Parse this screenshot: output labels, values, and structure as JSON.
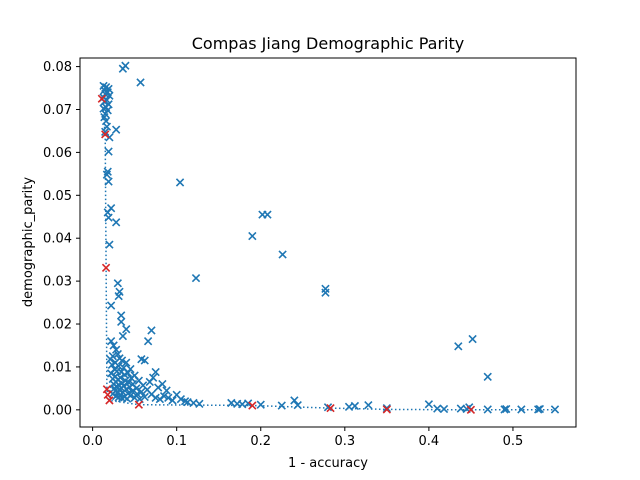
{
  "chart_data": {
    "type": "scatter",
    "title": "Compas Jiang Demographic Parity",
    "xlabel": "1 - accuracy",
    "ylabel": "demographic_parity",
    "xlim": [
      -0.015,
      0.575
    ],
    "ylim": [
      -0.004,
      0.082
    ],
    "xticks": [
      0.0,
      0.1,
      0.2,
      0.3,
      0.4,
      0.5
    ],
    "xtick_labels": [
      "0.0",
      "0.1",
      "0.2",
      "0.3",
      "0.4",
      "0.5"
    ],
    "yticks": [
      0.0,
      0.01,
      0.02,
      0.03,
      0.04,
      0.05,
      0.06,
      0.07,
      0.08
    ],
    "ytick_labels": [
      "0.00",
      "0.01",
      "0.02",
      "0.03",
      "0.04",
      "0.05",
      "0.06",
      "0.07",
      "0.08"
    ],
    "grid": false,
    "colors": {
      "all_points": "#1f77b4",
      "pareto_points": "#d62728",
      "frontier_line": "#1f77b4"
    },
    "series": [
      {
        "marker": "x",
        "color": "#1f77b4",
        "points": [
          [
            0.036,
            0.0795
          ],
          [
            0.039,
            0.0802
          ],
          [
            0.057,
            0.0763
          ],
          [
            0.013,
            0.0755
          ],
          [
            0.016,
            0.0752
          ],
          [
            0.019,
            0.0748
          ],
          [
            0.014,
            0.0745
          ],
          [
            0.018,
            0.074
          ],
          [
            0.015,
            0.0736
          ],
          [
            0.02,
            0.0732
          ],
          [
            0.013,
            0.0728
          ],
          [
            0.017,
            0.0722
          ],
          [
            0.014,
            0.0718
          ],
          [
            0.019,
            0.0712
          ],
          [
            0.016,
            0.0705
          ],
          [
            0.013,
            0.0702
          ],
          [
            0.018,
            0.0698
          ],
          [
            0.015,
            0.069
          ],
          [
            0.014,
            0.0682
          ],
          [
            0.016,
            0.0673
          ],
          [
            0.017,
            0.066
          ],
          [
            0.028,
            0.0653
          ],
          [
            0.015,
            0.0648
          ],
          [
            0.02,
            0.0635
          ],
          [
            0.019,
            0.0602
          ],
          [
            0.018,
            0.0555
          ],
          [
            0.017,
            0.0548
          ],
          [
            0.019,
            0.0532
          ],
          [
            0.022,
            0.047
          ],
          [
            0.018,
            0.046
          ],
          [
            0.019,
            0.0448
          ],
          [
            0.028,
            0.0437
          ],
          [
            0.02,
            0.0385
          ],
          [
            0.03,
            0.0295
          ],
          [
            0.032,
            0.0275
          ],
          [
            0.031,
            0.0265
          ],
          [
            0.022,
            0.0243
          ],
          [
            0.034,
            0.022
          ],
          [
            0.034,
            0.0205
          ],
          [
            0.04,
            0.0188
          ],
          [
            0.07,
            0.0185
          ],
          [
            0.036,
            0.0172
          ],
          [
            0.066,
            0.016
          ],
          [
            0.104,
            0.053
          ],
          [
            0.202,
            0.0455
          ],
          [
            0.208,
            0.0455
          ],
          [
            0.19,
            0.0405
          ],
          [
            0.226,
            0.0362
          ],
          [
            0.123,
            0.0307
          ],
          [
            0.277,
            0.0282
          ],
          [
            0.277,
            0.0273
          ],
          [
            0.452,
            0.0165
          ],
          [
            0.435,
            0.0148
          ],
          [
            0.47,
            0.0077
          ],
          [
            0.022,
            0.016
          ],
          [
            0.025,
            0.015
          ],
          [
            0.028,
            0.014
          ],
          [
            0.03,
            0.013
          ],
          [
            0.024,
            0.0125
          ],
          [
            0.032,
            0.012
          ],
          [
            0.021,
            0.0118
          ],
          [
            0.035,
            0.0115
          ],
          [
            0.027,
            0.011
          ],
          [
            0.04,
            0.011
          ],
          [
            0.023,
            0.0105
          ],
          [
            0.031,
            0.0102
          ],
          [
            0.037,
            0.0098
          ],
          [
            0.026,
            0.0095
          ],
          [
            0.045,
            0.0095
          ],
          [
            0.029,
            0.009
          ],
          [
            0.034,
            0.0088
          ],
          [
            0.042,
            0.0086
          ],
          [
            0.022,
            0.0085
          ],
          [
            0.038,
            0.0082
          ],
          [
            0.05,
            0.008
          ],
          [
            0.027,
            0.0078
          ],
          [
            0.033,
            0.0075
          ],
          [
            0.046,
            0.0074
          ],
          [
            0.024,
            0.0072
          ],
          [
            0.03,
            0.007
          ],
          [
            0.039,
            0.0068
          ],
          [
            0.055,
            0.0068
          ],
          [
            0.028,
            0.0065
          ],
          [
            0.043,
            0.0064
          ],
          [
            0.035,
            0.0062
          ],
          [
            0.025,
            0.006
          ],
          [
            0.048,
            0.006
          ],
          [
            0.031,
            0.0058
          ],
          [
            0.037,
            0.0056
          ],
          [
            0.06,
            0.0057
          ],
          [
            0.029,
            0.0054
          ],
          [
            0.044,
            0.0053
          ],
          [
            0.034,
            0.0051
          ],
          [
            0.026,
            0.005
          ],
          [
            0.052,
            0.005
          ],
          [
            0.04,
            0.0048
          ],
          [
            0.032,
            0.0046
          ],
          [
            0.065,
            0.0047
          ],
          [
            0.027,
            0.0044
          ],
          [
            0.047,
            0.0043
          ],
          [
            0.036,
            0.0041
          ],
          [
            0.058,
            0.0042
          ],
          [
            0.03,
            0.004
          ],
          [
            0.042,
            0.0038
          ],
          [
            0.024,
            0.0037
          ],
          [
            0.053,
            0.0037
          ],
          [
            0.033,
            0.0035
          ],
          [
            0.07,
            0.0036
          ],
          [
            0.045,
            0.0033
          ],
          [
            0.028,
            0.0032
          ],
          [
            0.038,
            0.003
          ],
          [
            0.062,
            0.003
          ],
          [
            0.031,
            0.0029
          ],
          [
            0.05,
            0.0028
          ],
          [
            0.035,
            0.0027
          ],
          [
            0.075,
            0.0028
          ],
          [
            0.041,
            0.0026
          ],
          [
            0.056,
            0.0025
          ],
          [
            0.08,
            0.0025
          ],
          [
            0.085,
            0.0032
          ],
          [
            0.09,
            0.0028
          ],
          [
            0.095,
            0.0022
          ],
          [
            0.1,
            0.0035
          ],
          [
            0.058,
            0.0118
          ],
          [
            0.062,
            0.0115
          ],
          [
            0.075,
            0.0088
          ],
          [
            0.072,
            0.0075
          ],
          [
            0.083,
            0.006
          ],
          [
            0.088,
            0.0045
          ],
          [
            0.068,
            0.0065
          ],
          [
            0.078,
            0.0052
          ],
          [
            0.105,
            0.0025
          ],
          [
            0.11,
            0.002
          ],
          [
            0.113,
            0.0018
          ],
          [
            0.12,
            0.0016
          ],
          [
            0.127,
            0.0014
          ],
          [
            0.165,
            0.0016
          ],
          [
            0.172,
            0.0014
          ],
          [
            0.178,
            0.0013
          ],
          [
            0.185,
            0.0015
          ],
          [
            0.2,
            0.0012
          ],
          [
            0.225,
            0.001
          ],
          [
            0.24,
            0.0022
          ],
          [
            0.244,
            0.0011
          ],
          [
            0.28,
            0.0006
          ],
          [
            0.305,
            0.0007
          ],
          [
            0.312,
            0.0009
          ],
          [
            0.328,
            0.0011
          ],
          [
            0.35,
            0.0004
          ],
          [
            0.4,
            0.0013
          ],
          [
            0.41,
            0.0003
          ],
          [
            0.418,
            0.0002
          ],
          [
            0.438,
            0.0003
          ],
          [
            0.445,
            0.0002
          ],
          [
            0.448,
            0.0006
          ],
          [
            0.47,
            0.0001
          ],
          [
            0.49,
            0.0001
          ],
          [
            0.492,
            0.0002
          ],
          [
            0.51,
            0.0001
          ],
          [
            0.53,
            0.0001
          ],
          [
            0.532,
            0.0002
          ],
          [
            0.55,
            0.0001
          ]
        ]
      },
      {
        "marker": "x",
        "color": "#d62728",
        "points": [
          [
            0.011,
            0.0725
          ],
          [
            0.015,
            0.0642
          ],
          [
            0.016,
            0.0331
          ],
          [
            0.017,
            0.0048
          ],
          [
            0.018,
            0.0035
          ],
          [
            0.02,
            0.0022
          ],
          [
            0.055,
            0.0012
          ],
          [
            0.19,
            0.001
          ],
          [
            0.283,
            0.0004
          ],
          [
            0.35,
            0.0001
          ],
          [
            0.45,
            0.0
          ]
        ]
      }
    ],
    "frontier_line": {
      "style": "dotted",
      "color": "#1f77b4",
      "points": [
        [
          0.011,
          0.0725
        ],
        [
          0.015,
          0.0642
        ],
        [
          0.016,
          0.0331
        ],
        [
          0.017,
          0.0048
        ],
        [
          0.018,
          0.0035
        ],
        [
          0.02,
          0.0022
        ],
        [
          0.055,
          0.0012
        ],
        [
          0.19,
          0.001
        ],
        [
          0.283,
          0.0004
        ],
        [
          0.35,
          0.0001
        ],
        [
          0.45,
          0.0
        ],
        [
          0.55,
          0.0
        ]
      ]
    }
  }
}
